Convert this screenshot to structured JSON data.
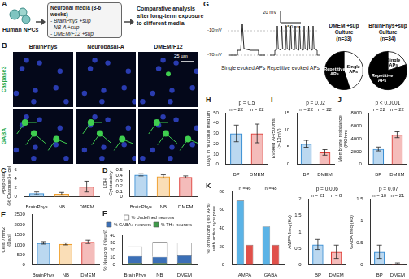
{
  "diagram": {
    "panel": "A",
    "source": "Human NPCs",
    "box_title": "Neuronal media (3-6 weeks)",
    "box_items": [
      "- BrainPhys +sup",
      "- NB-A +sup",
      "- DMEM/F12 +sup"
    ],
    "result_lines": [
      "Comparative analysis",
      "after long-term exposure",
      "to different media"
    ]
  },
  "images": {
    "panel": "B",
    "columns": [
      "BrainPhys",
      "Neurobasal-A",
      "DMEM/F12"
    ],
    "rows": [
      "Caspase3",
      "GABA"
    ],
    "scale_bar": "25 µm"
  },
  "traces": {
    "panel": "G",
    "levels": [
      "-10mV",
      "-70mV"
    ],
    "scale_bars": [
      "20 mV",
      "150 ms"
    ],
    "captions": [
      "Single evoked APs",
      "Repetitive evoked APs"
    ]
  },
  "chart_data": [
    {
      "panel": "C",
      "type": "bar",
      "categories": [
        "BrainPhys",
        "NB",
        "DMEM"
      ],
      "values": [
        0.8,
        0.7,
        2.3
      ],
      "errors": [
        0.3,
        0.3,
        1.2
      ],
      "colors": [
        "#3b8fd4",
        "#f0a030",
        "#e0403a"
      ],
      "y_label": [
        "Apoptosis",
        "(% Caspase3+ cells)"
      ],
      "ylim": [
        0,
        6
      ],
      "yticks": [
        0,
        2,
        4,
        6
      ],
      "grid": false
    },
    {
      "panel": "D",
      "type": "bar",
      "categories": [
        "BrainPhys",
        "NB",
        "DMEM"
      ],
      "values": [
        0.41,
        0.38,
        0.37
      ],
      "errors": [
        0.02,
        0.03,
        0.02
      ],
      "colors": [
        "#3b8fd4",
        "#f0a030",
        "#e0403a"
      ],
      "y_label": [
        "LDH",
        "Cytotoxicity"
      ],
      "ylim": [
        0,
        0.5
      ],
      "yticks": [
        0,
        0.1,
        0.2,
        0.3,
        0.4,
        0.5
      ],
      "grid": false
    },
    {
      "panel": "E",
      "type": "bar",
      "categories": [
        "BrainPhys",
        "NB",
        "DMEM"
      ],
      "values": [
        1100,
        1050,
        1150
      ],
      "errors": [
        60,
        50,
        80
      ],
      "colors": [
        "#3b8fd4",
        "#f0a030",
        "#e0403a"
      ],
      "y_label": [
        "Cells / mm2",
        "(Dapi)"
      ],
      "ylim": [
        0,
        2500
      ],
      "yticks": [
        0,
        500,
        1000,
        1500,
        2000,
        2500
      ],
      "grid": false
    },
    {
      "panel": "F",
      "type": "bar",
      "categories": [
        "BrainPhys",
        "NB",
        "DMEM"
      ],
      "stacked": true,
      "legend": "top",
      "series": [
        {
          "name": "% TH+ neurons",
          "color": "#3f9a4a",
          "values": [
            3,
            3,
            3
          ]
        },
        {
          "name": "% GABA+ neurons",
          "color": "#3b6fb6",
          "values": [
            9,
            8,
            10
          ]
        },
        {
          "name": "% Undefined neurons",
          "color": "#ffffff",
          "values": [
            13,
            20,
            17
          ]
        }
      ],
      "y_label": [
        "% Neurons (NeuN)"
      ],
      "ylim": [
        0,
        40
      ],
      "yticks": [
        0,
        10,
        20,
        30,
        40
      ],
      "grid": false
    },
    {
      "type": "pie",
      "title": [
        "DMEM +sup",
        "Culture",
        "(n=33)"
      ],
      "categories": [
        "Single APs",
        "Repetitive APs"
      ],
      "values": [
        45,
        55
      ],
      "colors": [
        "#ffffff",
        "#000000"
      ]
    },
    {
      "type": "pie",
      "title": [
        "BrainPhys+sup",
        "Culture",
        "(n=34)"
      ],
      "categories": [
        "Single APs",
        "Repetitive APs"
      ],
      "values": [
        20,
        80
      ],
      "colors": [
        "#ffffff",
        "#000000"
      ]
    },
    {
      "panel": "H",
      "type": "bar",
      "categories": [
        "BP",
        "DMEM"
      ],
      "values": [
        30,
        30
      ],
      "errors": [
        8,
        9
      ],
      "colors": [
        "#3b8fd4",
        "#e0403a"
      ],
      "y_label": [
        "Days in neuronal medium"
      ],
      "p_label": "p = 0.5",
      "n_labels": [
        "n = 22",
        "n = 22"
      ],
      "ylim": [
        0,
        50
      ],
      "yticks": [
        0,
        10,
        20,
        30,
        40,
        50
      ],
      "grid": false
    },
    {
      "panel": "I",
      "type": "bar",
      "categories": [
        "BP",
        "DMEM"
      ],
      "values": [
        6,
        3.5
      ],
      "errors": [
        1,
        0.8
      ],
      "colors": [
        "#3b8fd4",
        "#e0403a"
      ],
      "y_label": [
        "Evoked AP/500ms",
        "(>-10mV)"
      ],
      "p_label": "p = 0.02",
      "n_labels": [
        "n = 22",
        "n = 22"
      ],
      "ylim": [
        0,
        15
      ],
      "yticks": [
        0,
        5,
        10,
        15
      ],
      "grid": false
    },
    {
      "panel": "J",
      "type": "bar",
      "categories": [
        "BP",
        "DMEM"
      ],
      "values": [
        2400,
        4600
      ],
      "errors": [
        300,
        450
      ],
      "colors": [
        "#3b8fd4",
        "#e0403a"
      ],
      "y_label": [
        "Membrane resistance",
        "(MOhm)"
      ],
      "p_label": "p < 0.0001",
      "n_labels": [
        "n = 22",
        "n = 22"
      ],
      "ylim": [
        0,
        8000
      ],
      "yticks": [
        0,
        2000,
        4000,
        6000,
        8000
      ],
      "grid": false
    },
    {
      "panel": "K",
      "type": "bar",
      "categories": [
        "AMPA",
        "GABA"
      ],
      "series": [
        {
          "color": "#5bb3e6",
          "values": [
            70,
            42
          ]
        },
        {
          "color": "#e0504a",
          "values": [
            22,
            22
          ]
        }
      ],
      "n_labels": [
        "n =46",
        "n =48"
      ],
      "y_label": [
        "% of neurons (rep APs)",
        "with active synapses"
      ],
      "ylim": [
        0,
        80
      ],
      "yticks": [
        0,
        20,
        40,
        60,
        80
      ],
      "grid": false
    },
    {
      "type": "bar",
      "categories": [
        "BP",
        "DMEM"
      ],
      "values": [
        0.62,
        0.4
      ],
      "errors": [
        0.15,
        0.2
      ],
      "colors": [
        "#3b8fd4",
        "#e0403a"
      ],
      "y_label": [
        "AMPA freq (Hz)"
      ],
      "p_label": "p = 0.006",
      "n_labels": [
        "n = 21",
        "n = 8"
      ],
      "ylim": [
        0,
        2
      ],
      "yticks": [
        0,
        0.5,
        1,
        1.5,
        2
      ],
      "grid": false
    },
    {
      "type": "bar",
      "categories": [
        "BP",
        "DMEM"
      ],
      "values": [
        0.3,
        0.03
      ],
      "errors": [
        0.15,
        0.02
      ],
      "colors": [
        "#3b8fd4",
        "#e0403a"
      ],
      "y_label": [
        "GABA freq (Hz)"
      ],
      "p_label": "p = 0.07",
      "n_labels": [
        "n = 10",
        "n = 21"
      ],
      "ylim": [
        0,
        1.5
      ],
      "yticks": [
        0,
        0.5,
        1,
        1.5
      ],
      "grid": false
    }
  ]
}
